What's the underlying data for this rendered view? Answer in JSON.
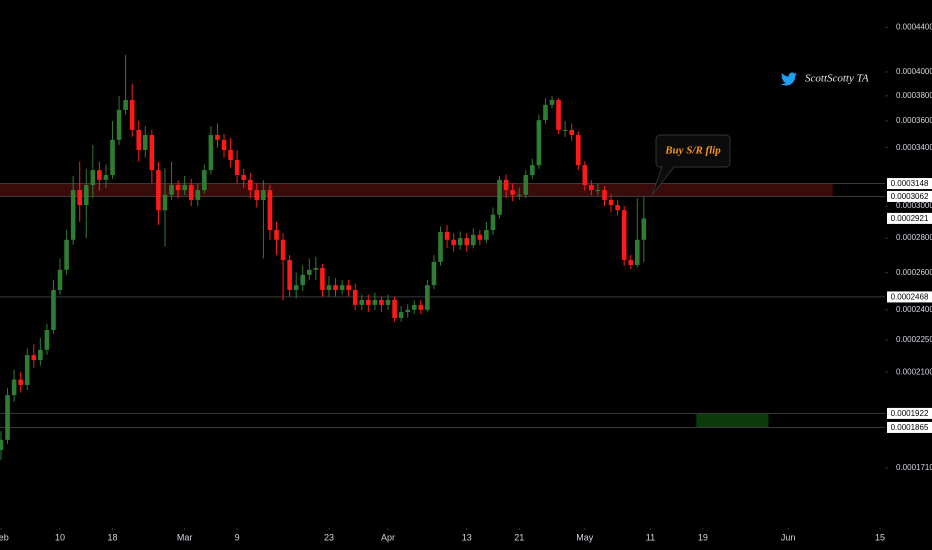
{
  "chart_data": {
    "type": "candlestick",
    "watermark": "ScottScotty TA",
    "annotations": [
      {
        "text": "Buy S/R flip"
      }
    ],
    "log": true,
    "up_color": "#2e7d32",
    "down_color": "#ff1a1a",
    "xlim": [
      31.85,
      166.76
    ],
    "ylim": [
      0.0001529,
      0.0004668
    ],
    "xticks": [
      {
        "value": 32,
        "label": "Feb"
      },
      {
        "value": 41,
        "label": "10"
      },
      {
        "value": 49,
        "label": "18"
      },
      {
        "value": 60,
        "label": "Mar"
      },
      {
        "value": 68,
        "label": "9"
      },
      {
        "value": 82,
        "label": "23"
      },
      {
        "value": 91,
        "label": "Apr"
      },
      {
        "value": 103,
        "label": "13"
      },
      {
        "value": 111,
        "label": "21"
      },
      {
        "value": 121,
        "label": "May"
      },
      {
        "value": 131,
        "label": "11"
      },
      {
        "value": 139,
        "label": "19"
      },
      {
        "value": 152,
        "label": "Jun"
      },
      {
        "value": 166,
        "label": "15"
      }
    ],
    "yticks": [
      {
        "value": 0.00044,
        "label": "0.0004400"
      },
      {
        "value": 0.0004,
        "label": "0.0004000"
      },
      {
        "value": 0.00038,
        "label": "0.0003800"
      },
      {
        "value": 0.00036,
        "label": "0.0003600"
      },
      {
        "value": 0.00034,
        "label": "0.0003400"
      },
      {
        "value": 0.0003,
        "label": "0.0003000"
      },
      {
        "value": 0.00028,
        "label": "0.0002800"
      },
      {
        "value": 0.00026,
        "label": "0.0002600"
      },
      {
        "value": 0.00024,
        "label": "0.0002400"
      },
      {
        "value": 0.000225,
        "label": "0.0002250"
      },
      {
        "value": 0.00021,
        "label": "0.0002100"
      },
      {
        "value": 0.000171,
        "label": "0.0001710"
      }
    ],
    "zones": [
      {
        "top": 0.0003148,
        "bottom": 0.0003062,
        "x": [
          31.85,
          158.8
        ],
        "color": "#3a0b0b"
      },
      {
        "top": 0.0001922,
        "bottom": 0.0001865,
        "x": [
          138,
          149
        ],
        "color": "#0b3a0b"
      }
    ],
    "price_lines": [
      0.0002468
    ],
    "x": [
      32,
      33,
      34,
      35,
      36,
      37,
      38,
      39,
      40,
      41,
      42,
      43,
      44,
      45,
      46,
      47,
      48,
      49,
      50,
      51,
      52,
      53,
      54,
      55,
      56,
      57,
      58,
      59,
      60,
      61,
      62,
      63,
      64,
      65,
      66,
      67,
      68,
      69,
      70,
      71,
      72,
      73,
      74,
      75,
      76,
      77,
      78,
      79,
      80,
      81,
      82,
      83,
      84,
      85,
      86,
      87,
      88,
      89,
      90,
      91,
      92,
      93,
      94,
      95,
      96,
      97,
      98,
      99,
      100,
      101,
      102,
      103,
      104,
      105,
      106,
      107,
      108,
      109,
      110,
      111,
      112,
      113,
      114,
      115,
      116,
      117,
      118,
      119,
      120,
      121,
      122,
      123,
      124,
      125,
      126,
      127,
      128,
      129,
      130
    ],
    "open": [
      0.0001777,
      0.0001816,
      0.0001999,
      0.0002067,
      0.0002043,
      0.0002178,
      0.0002155,
      0.0002203,
      0.0002299,
      0.0002505,
      0.0002616,
      0.000279,
      0.0003104,
      0.0003006,
      0.0003138,
      0.000324,
      0.0003173,
      0.0003206,
      0.0003458,
      0.0003687,
      0.0003766,
      0.0003532,
      0.0003383,
      0.0003494,
      0.000324,
      0.0002973,
      0.0003073,
      0.0003138,
      0.0003104,
      0.0003138,
      0.0003039,
      0.0003104,
      0.000324,
      0.0003494,
      0.0003458,
      0.0003383,
      0.0003311,
      0.0003206,
      0.0003173,
      0.0003104,
      0.0003039,
      0.0003104,
      0.0002849,
      0.000279,
      0.0002672,
      0.0002505,
      0.0002531,
      0.0002588,
      0.0002616,
      0.0002626,
      0.0002505,
      0.0002531,
      0.0002505,
      0.0002531,
      0.0002505,
      0.0002426,
      0.0002452,
      0.0002426,
      0.0002452,
      0.0002426,
      0.0002452,
      0.0002359,
      0.0002389,
      0.0002401,
      0.0002426,
      0.0002401,
      0.0002531,
      0.0002661,
      0.0002837,
      0.000279,
      0.0002758,
      0.00028,
      0.0002758,
      0.000282,
      0.000279,
      0.0002849,
      0.0002944,
      0.0003173,
      0.0003104,
      0.0003073,
      0.0003073,
      0.0003206,
      0.0003275,
      0.0003607,
      0.0003727,
      0.0003766,
      0.0003532,
      0.0003532,
      0.0003494,
      0.0003275,
      0.0003138,
      0.0003104,
      0.0003104,
      0.0003039,
      0.0003006,
      0.0002973,
      0.0002672,
      0.0002643,
      0.000279
    ],
    "high": [
      0.000185,
      0.000203,
      0.000211,
      0.00021,
      0.000221,
      0.000223,
      0.000226,
      0.000233,
      0.000256,
      0.000268,
      0.000285,
      0.00032,
      0.00033,
      0.000325,
      0.000342,
      0.00033,
      0.000328,
      0.00036,
      0.00038,
      0.000415,
      0.00039,
      0.00036,
      0.000356,
      0.000353,
      0.00033,
      0.000325,
      0.00033,
      0.000317,
      0.00032,
      0.000318,
      0.000315,
      0.000328,
      0.000356,
      0.000358,
      0.00035,
      0.000347,
      0.000338,
      0.000325,
      0.000322,
      0.000315,
      0.000317,
      0.000314,
      0.00029,
      0.000283,
      0.00027,
      0.00026,
      0.000264,
      0.000268,
      0.000269,
      0.000265,
      0.000258,
      0.000257,
      0.000256,
      0.000256,
      0.000254,
      0.000248,
      0.000248,
      0.000249,
      0.000247,
      0.000248,
      0.000247,
      0.000242,
      0.000243,
      0.000245,
      0.000245,
      0.000256,
      0.00027,
      0.000287,
      0.000288,
      0.000283,
      0.000284,
      0.000283,
      0.000286,
      0.000285,
      0.00029,
      0.000299,
      0.00032,
      0.000321,
      0.000315,
      0.000312,
      0.000324,
      0.000332,
      0.000365,
      0.000378,
      0.00038,
      0.000378,
      0.00036,
      0.000358,
      0.000352,
      0.00033,
      0.000317,
      0.000315,
      0.000313,
      0.000308,
      0.000304,
      0.0003,
      0.00027,
      0.000305,
      0.000306
    ],
    "low": [
      0.000174,
      0.00018,
      0.000197,
      0.000201,
      0.000202,
      0.000212,
      0.000213,
      0.000218,
      0.000228,
      0.000248,
      0.000259,
      0.000276,
      0.00029,
      0.00028,
      0.000305,
      0.00031,
      0.000312,
      0.000318,
      0.000342,
      0.000365,
      0.000348,
      0.00033,
      0.000333,
      0.000315,
      0.000288,
      0.000275,
      0.000304,
      0.000305,
      0.000307,
      0.0003,
      0.0003,
      0.000308,
      0.000321,
      0.00034,
      0.000333,
      0.000326,
      0.000315,
      0.000312,
      0.000305,
      0.000299,
      0.000268,
      0.000279,
      0.00027,
      0.000245,
      0.000247,
      0.000246,
      0.00025,
      0.000256,
      0.000256,
      0.000247,
      0.000247,
      0.000247,
      0.000248,
      0.000247,
      0.00024,
      0.00024,
      0.000239,
      0.00024,
      0.000239,
      0.00024,
      0.000234,
      0.000234,
      0.000236,
      0.000238,
      0.000238,
      0.000239,
      0.000251,
      0.000264,
      0.000274,
      0.000272,
      0.000273,
      0.000272,
      0.000274,
      0.000276,
      0.000277,
      0.000282,
      0.000292,
      0.000305,
      0.000303,
      0.000304,
      0.000305,
      0.000318,
      0.000325,
      0.000358,
      0.00037,
      0.00035,
      0.000348,
      0.000345,
      0.000324,
      0.00031,
      0.000307,
      0.000307,
      0.0003,
      0.000296,
      0.000294,
      0.000264,
      0.000262,
      0.000263,
      0.000266
    ],
    "close": [
      0.0001816,
      0.0001999,
      0.0002067,
      0.0002043,
      0.0002178,
      0.0002155,
      0.0002203,
      0.0002299,
      0.0002505,
      0.0002616,
      0.000279,
      0.0003104,
      0.0003006,
      0.0003138,
      0.000324,
      0.0003173,
      0.0003206,
      0.0003458,
      0.0003687,
      0.0003766,
      0.0003532,
      0.0003383,
      0.0003494,
      0.000324,
      0.0002973,
      0.0003073,
      0.0003138,
      0.0003104,
      0.0003138,
      0.0003039,
      0.0003104,
      0.000324,
      0.0003494,
      0.0003458,
      0.0003383,
      0.0003311,
      0.0003206,
      0.0003173,
      0.0003104,
      0.0003039,
      0.0003104,
      0.0002849,
      0.000279,
      0.0002672,
      0.0002505,
      0.0002531,
      0.0002588,
      0.0002616,
      0.0002626,
      0.0002505,
      0.0002531,
      0.0002505,
      0.0002531,
      0.0002505,
      0.0002426,
      0.0002452,
      0.0002426,
      0.0002452,
      0.0002426,
      0.0002452,
      0.0002359,
      0.0002389,
      0.0002401,
      0.0002426,
      0.0002401,
      0.0002531,
      0.0002661,
      0.0002837,
      0.000279,
      0.0002758,
      0.00028,
      0.0002758,
      0.000282,
      0.000279,
      0.0002849,
      0.0002944,
      0.0003173,
      0.0003104,
      0.0003073,
      0.0003073,
      0.0003206,
      0.0003275,
      0.0003607,
      0.0003727,
      0.0003766,
      0.0003532,
      0.0003532,
      0.0003494,
      0.0003275,
      0.0003138,
      0.0003104,
      0.0003104,
      0.0003039,
      0.0003006,
      0.0002973,
      0.0002672,
      0.0002643,
      0.000279,
      0.0002921
    ]
  }
}
